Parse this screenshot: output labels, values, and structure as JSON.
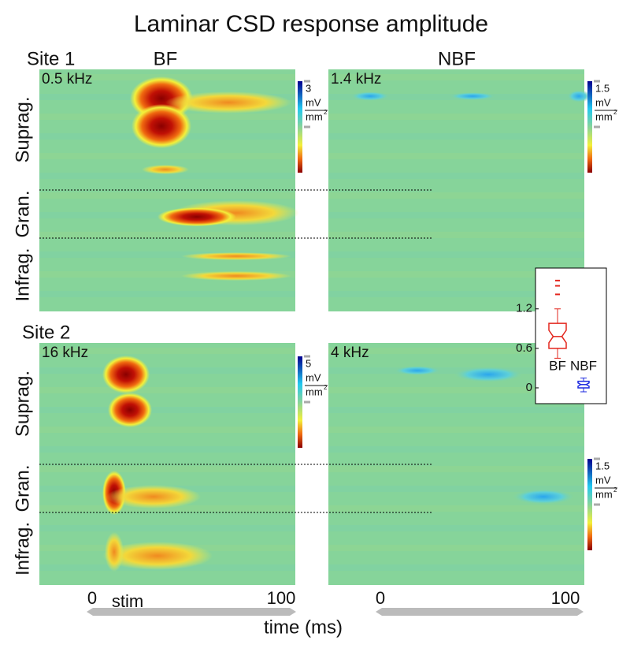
{
  "title": "Laminar CSD response amplitude",
  "columns": [
    "BF",
    "NBF"
  ],
  "sites": [
    {
      "label": "Site 1",
      "layers": [
        "Suprag.",
        "Gran.",
        "Infrag."
      ],
      "panels": [
        {
          "freq": "0.5 kHz",
          "freq_color": "#1c2aa8"
        },
        {
          "freq": "1.4 kHz",
          "freq_color": "#1c2aa8"
        }
      ]
    },
    {
      "label": "Site 2",
      "layers": [
        "Suprag.",
        "Gran.",
        "Infrag."
      ],
      "panels": [
        {
          "freq": "16 kHz",
          "freq_color": "#9a1a10"
        },
        {
          "freq": "4 kHz",
          "freq_color": "#9a1a10"
        }
      ]
    }
  ],
  "colorbars": [
    {
      "max": "3",
      "unit": "mV",
      "per": "mm",
      "power": "2"
    },
    {
      "max": "1.5",
      "unit": "mV",
      "per": "mm",
      "power": "2"
    },
    {
      "max": "5",
      "unit": "mV",
      "per": "mm",
      "power": "2"
    },
    {
      "max": "1.5",
      "unit": "mV",
      "per": "mm",
      "power": "2"
    }
  ],
  "x_axis": {
    "label": "time (ms)",
    "left_ticks": [
      "0",
      "stim",
      "100"
    ],
    "right_ticks": [
      "0",
      "100"
    ]
  },
  "chart_data": {
    "type": "box",
    "categories": [
      "BF",
      "NBF"
    ],
    "boxes": [
      {
        "color": "#e3261d",
        "whisker_low": 0.45,
        "q1": 0.6,
        "median": 0.78,
        "q3": 0.98,
        "whisker_high": 1.2,
        "outliers": [
          1.42,
          1.55,
          1.63
        ]
      },
      {
        "color": "#1f2be0",
        "whisker_low": -0.06,
        "q1": 0.0,
        "median": 0.05,
        "q3": 0.1,
        "whisker_high": 0.15,
        "outliers": []
      }
    ],
    "ylim": [
      -0.24,
      1.82
    ],
    "yticks": [
      0,
      0.6,
      1.2
    ]
  }
}
